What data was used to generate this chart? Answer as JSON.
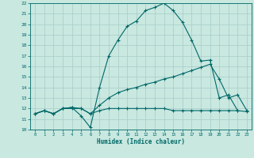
{
  "xlabel": "Humidex (Indice chaleur)",
  "bg_color": "#c8e8e0",
  "line_color": "#006868",
  "grid_color": "#a8ccc8",
  "xlim": [
    -0.5,
    23.5
  ],
  "ylim": [
    10,
    22
  ],
  "xticks": [
    0,
    1,
    2,
    3,
    4,
    5,
    6,
    7,
    8,
    9,
    10,
    11,
    12,
    13,
    14,
    15,
    16,
    17,
    18,
    19,
    20,
    21,
    22,
    23
  ],
  "yticks": [
    10,
    11,
    12,
    13,
    14,
    15,
    16,
    17,
    18,
    19,
    20,
    21,
    22
  ],
  "line1_x": [
    0,
    1,
    2,
    3,
    4,
    5,
    6,
    7,
    8,
    9,
    10,
    11,
    12,
    13,
    14,
    15,
    16,
    17,
    18,
    19,
    20,
    21,
    22
  ],
  "line1_y": [
    11.5,
    11.8,
    11.5,
    12.0,
    12.1,
    11.3,
    10.2,
    14.0,
    17.0,
    18.5,
    19.8,
    20.3,
    21.3,
    21.6,
    22.0,
    21.3,
    20.2,
    18.5,
    16.5,
    16.6,
    13.0,
    13.3,
    11.8
  ],
  "line2_x": [
    0,
    1,
    2,
    3,
    4,
    5,
    6,
    7,
    8,
    9,
    10,
    11,
    12,
    13,
    14,
    15,
    16,
    17,
    18,
    19,
    20,
    21,
    22,
    23
  ],
  "line2_y": [
    11.5,
    11.8,
    11.5,
    12.0,
    12.1,
    12.0,
    11.5,
    12.3,
    13.0,
    13.5,
    13.8,
    14.0,
    14.3,
    14.5,
    14.8,
    15.0,
    15.3,
    15.6,
    15.9,
    16.2,
    14.8,
    13.0,
    13.3,
    11.8
  ],
  "line3_x": [
    0,
    1,
    2,
    3,
    4,
    5,
    6,
    7,
    8,
    9,
    10,
    11,
    12,
    13,
    14,
    15,
    16,
    17,
    18,
    19,
    20,
    21,
    22,
    23
  ],
  "line3_y": [
    11.5,
    11.8,
    11.5,
    12.0,
    12.0,
    12.0,
    11.5,
    11.8,
    12.0,
    12.0,
    12.0,
    12.0,
    12.0,
    12.0,
    12.0,
    11.8,
    11.8,
    11.8,
    11.8,
    11.8,
    11.8,
    11.8,
    11.8,
    11.7
  ]
}
